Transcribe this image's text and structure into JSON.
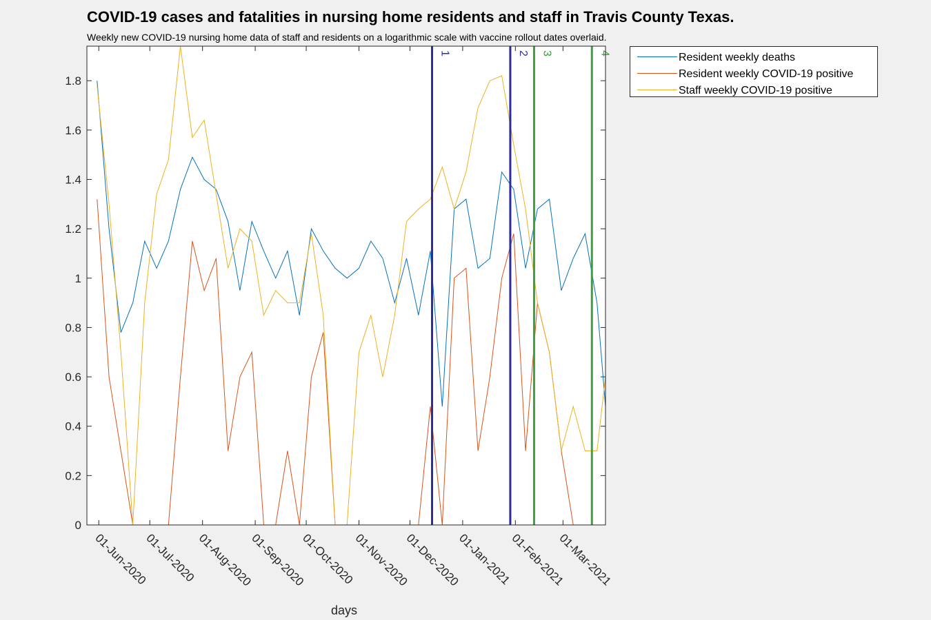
{
  "chart_data": {
    "type": "line",
    "title": "COVID-19 cases and fatalities in nursing home residents and staff in Travis County Texas.",
    "subtitle": "Weekly new COVID-19 nursing home data of staff and residents on a logarithmic scale with vaccine rollout dates overlaid.",
    "xlabel": "days",
    "ylabel": "",
    "xlim": [
      "2020-05-25",
      "2021-03-26"
    ],
    "ylim": [
      0,
      1.94
    ],
    "yticks": [
      0,
      0.2,
      0.4,
      0.6,
      0.8,
      1,
      1.2,
      1.4,
      1.6,
      1.8
    ],
    "ytick_labels": [
      "0",
      "0.2",
      "0.4",
      "0.6",
      "0.8",
      "1",
      "1.2",
      "1.4",
      "1.6",
      "1.8"
    ],
    "xticks": [
      "2020-06-01",
      "2020-07-01",
      "2020-08-01",
      "2020-09-01",
      "2020-10-01",
      "2020-11-01",
      "2020-12-01",
      "2021-01-01",
      "2021-02-01",
      "2021-03-01"
    ],
    "xtick_labels": [
      "01-Jun-2020",
      "01-Jul-2020",
      "01-Aug-2020",
      "01-Sep-2020",
      "01-Oct-2020",
      "01-Nov-2020",
      "01-Dec-2020",
      "01-Jan-2021",
      "01-Feb-2021",
      "01-Mar-2021"
    ],
    "grid": false,
    "legend_position": "outside-top-right",
    "x": [
      "2020-05-31",
      "2020-06-07",
      "2020-06-14",
      "2020-06-21",
      "2020-06-28",
      "2020-07-05",
      "2020-07-12",
      "2020-07-19",
      "2020-07-26",
      "2020-08-02",
      "2020-08-09",
      "2020-08-16",
      "2020-08-23",
      "2020-08-30",
      "2020-09-06",
      "2020-09-13",
      "2020-09-20",
      "2020-09-27",
      "2020-10-04",
      "2020-10-11",
      "2020-10-18",
      "2020-10-25",
      "2020-11-01",
      "2020-11-08",
      "2020-11-15",
      "2020-11-22",
      "2020-11-29",
      "2020-12-06",
      "2020-12-13",
      "2020-12-20",
      "2020-12-27",
      "2021-01-03",
      "2021-01-10",
      "2021-01-17",
      "2021-01-24",
      "2021-01-31",
      "2021-02-07",
      "2021-02-14",
      "2021-02-21",
      "2021-02-28",
      "2021-03-07",
      "2021-03-14",
      "2021-03-21",
      "2021-03-26"
    ],
    "series": [
      {
        "name": "Resident weekly deaths",
        "color": "#0072BD",
        "values": [
          1.8,
          1.2,
          0.78,
          0.9,
          1.15,
          1.04,
          1.15,
          1.36,
          1.49,
          1.4,
          1.36,
          1.23,
          0.95,
          1.23,
          1.11,
          1.0,
          1.11,
          0.85,
          1.2,
          1.11,
          1.04,
          1.0,
          1.04,
          1.15,
          1.08,
          0.9,
          1.08,
          0.85,
          1.11,
          0.48,
          1.28,
          1.32,
          1.04,
          1.08,
          1.43,
          1.36,
          1.04,
          1.28,
          1.32,
          0.95,
          1.08,
          1.18,
          0.9,
          0.48
        ]
      },
      {
        "name": "Resident weekly COVID-19 positive",
        "color": "#D95319",
        "values": [
          1.32,
          0.6,
          0.3,
          0.0,
          0.0,
          0.0,
          0.0,
          0.6,
          1.15,
          0.95,
          1.08,
          0.3,
          0.6,
          0.7,
          0.0,
          0.0,
          0.3,
          0.0,
          0.6,
          0.78,
          0.0,
          0.0,
          0.0,
          0.0,
          0.0,
          0.0,
          0.0,
          0.0,
          0.48,
          0.0,
          1.0,
          1.04,
          0.3,
          0.6,
          1.0,
          1.18,
          0.3,
          0.9,
          0.7,
          0.3,
          0.0,
          0.0,
          0.0,
          0.0
        ]
      },
      {
        "name": "Staff weekly COVID-19 positive",
        "color": "#EDB120",
        "values": [
          1.78,
          1.3,
          0.7,
          0.0,
          0.9,
          1.34,
          1.48,
          1.94,
          1.57,
          1.64,
          1.34,
          1.04,
          1.2,
          1.15,
          0.85,
          0.95,
          0.9,
          0.9,
          1.18,
          0.85,
          0.0,
          0.0,
          0.7,
          0.85,
          0.6,
          0.85,
          1.23,
          1.28,
          1.32,
          1.45,
          1.28,
          1.43,
          1.69,
          1.8,
          1.82,
          1.54,
          1.28,
          0.9,
          0.7,
          0.3,
          0.48,
          0.3,
          0.3,
          0.6
        ]
      }
    ],
    "vertical_lines": [
      {
        "x": "2020-12-14",
        "label": "1",
        "color": "#2C2C9A"
      },
      {
        "x": "2021-01-29",
        "label": "2",
        "color": "#2C2C9A"
      },
      {
        "x": "2021-02-12",
        "label": "3",
        "color": "#3DA03D"
      },
      {
        "x": "2021-03-18",
        "label": "4",
        "color": "#3DA03D"
      }
    ]
  }
}
